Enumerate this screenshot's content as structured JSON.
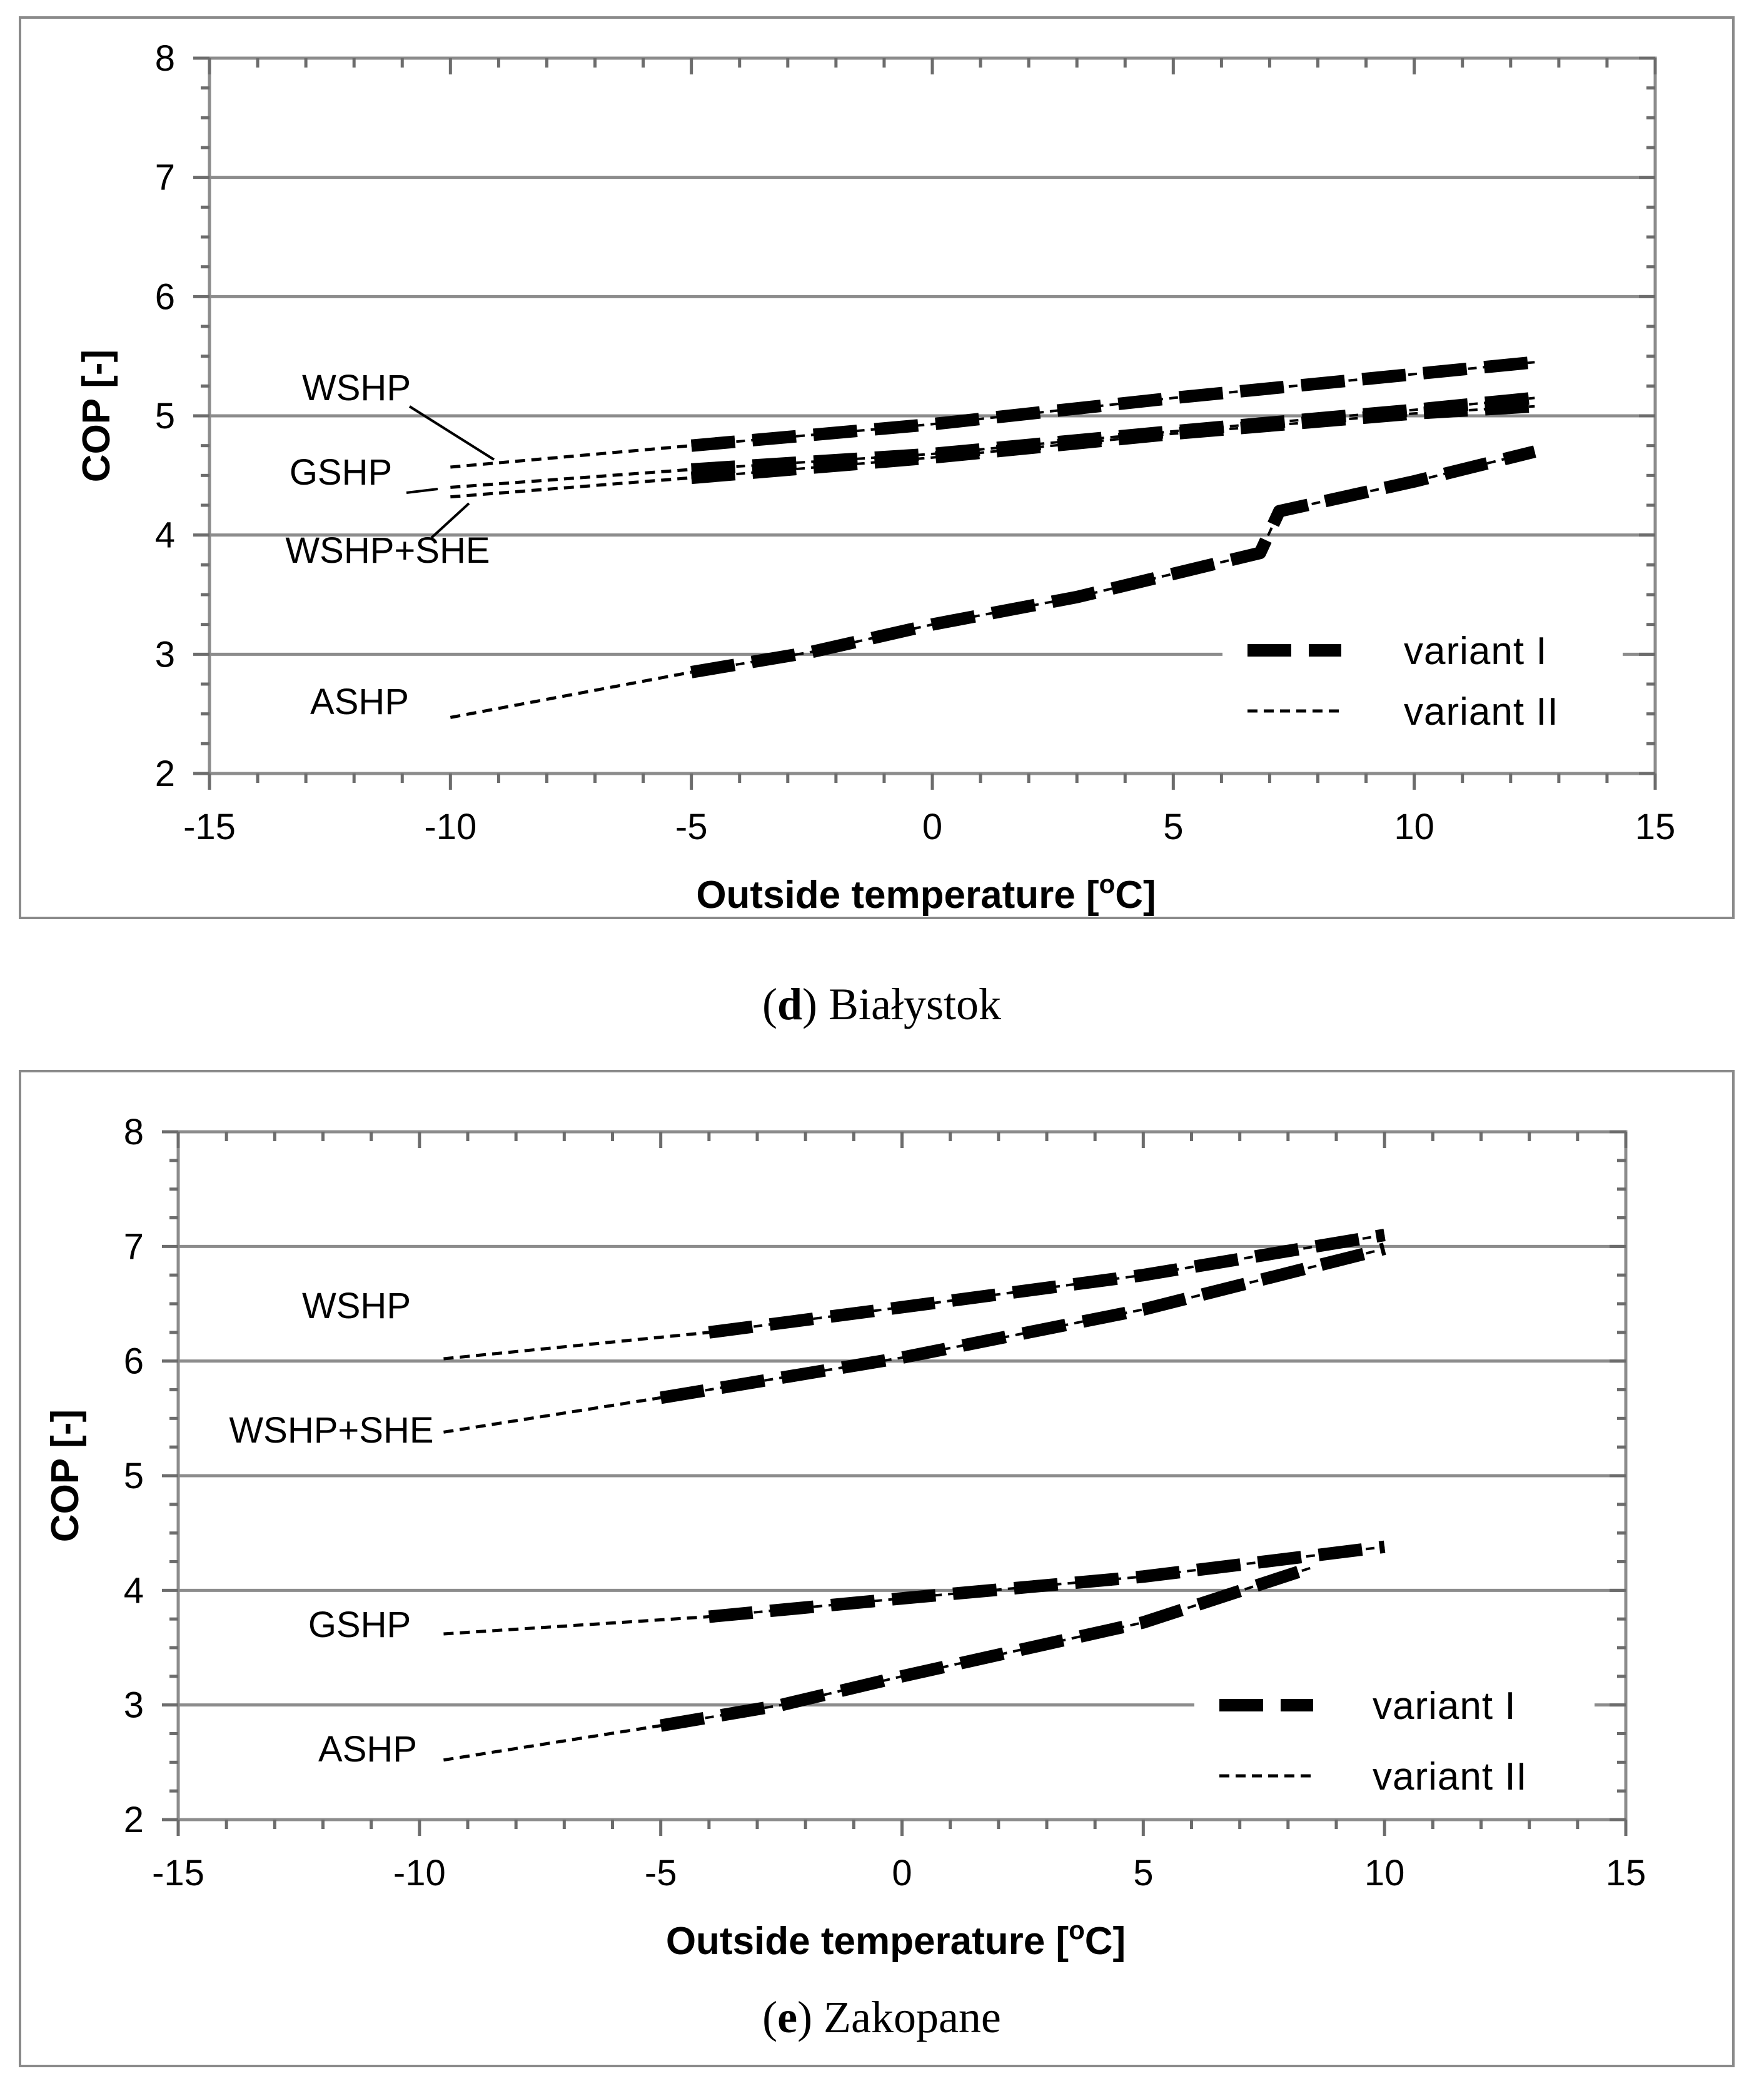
{
  "chart_data": [
    {
      "type": "line",
      "caption_letter": "d",
      "caption_city": "Białystok",
      "caption_open": "(",
      "caption_close": ")",
      "xlabel": "Outside temperature [",
      "xlabel_sup": "o",
      "xlabel_end": "C]",
      "ylabel": "COP [-]",
      "xlim": [
        -15,
        15
      ],
      "ylim": [
        2,
        8
      ],
      "xticks": [
        -15,
        -10,
        -5,
        0,
        5,
        10,
        15
      ],
      "yticks": [
        2,
        3,
        4,
        5,
        6,
        7,
        8
      ],
      "grid": "horizontal",
      "legend": [
        "variant I",
        "variant II"
      ],
      "legend_position": "bottom-right",
      "series": [
        {
          "name": "WSHP",
          "variant_II": [
            [
              -10,
              4.57
            ],
            [
              -5,
              4.75
            ]
          ],
          "variant_I": [
            [
              -5,
              4.75
            ],
            [
              0,
              4.93
            ],
            [
              5,
              5.15
            ],
            [
              10,
              5.35
            ],
            [
              12.5,
              5.45
            ]
          ]
        },
        {
          "name": "GSHP",
          "variant_II": [
            [
              -10,
              4.4
            ],
            [
              -5,
              4.55
            ]
          ],
          "variant_I": [
            [
              -5,
              4.55
            ],
            [
              0,
              4.68
            ],
            [
              5,
              4.87
            ],
            [
              10,
              5.05
            ],
            [
              12.5,
              5.15
            ]
          ]
        },
        {
          "name": "WSHP+SHE",
          "variant_II": [
            [
              -10,
              4.32
            ],
            [
              -5,
              4.48
            ]
          ],
          "variant_I": [
            [
              -5,
              4.48
            ],
            [
              0,
              4.65
            ],
            [
              5,
              4.85
            ],
            [
              10,
              5.02
            ],
            [
              12.5,
              5.08
            ]
          ]
        },
        {
          "name": "ASHP",
          "variant_II": [
            [
              -10,
              2.47
            ],
            [
              -5,
              2.85
            ]
          ],
          "variant_I": [
            [
              -5,
              2.85
            ],
            [
              -2.5,
              3.02
            ],
            [
              0,
              3.25
            ],
            [
              3,
              3.48
            ],
            [
              6.8,
              3.85
            ],
            [
              7.2,
              4.2
            ],
            [
              10,
              4.45
            ],
            [
              12.5,
              4.7
            ]
          ]
        }
      ]
    },
    {
      "type": "line",
      "caption_letter": "e",
      "caption_city": "Zakopane",
      "caption_open": "(",
      "caption_close": ")",
      "xlabel": "Outside temperature [",
      "xlabel_sup": "o",
      "xlabel_end": "C]",
      "ylabel": "COP [-]",
      "xlim": [
        -15,
        15
      ],
      "ylim": [
        2,
        8
      ],
      "xticks": [
        -15,
        -10,
        -5,
        0,
        5,
        10,
        15
      ],
      "yticks": [
        2,
        3,
        4,
        5,
        6,
        7,
        8
      ],
      "grid": "horizontal",
      "legend": [
        "variant I",
        "variant II"
      ],
      "legend_position": "bottom-right",
      "series": [
        {
          "name": "WSHP",
          "variant_II": [
            [
              -9.5,
              6.02
            ],
            [
              -4,
              6.25
            ]
          ],
          "variant_I": [
            [
              -4,
              6.25
            ],
            [
              0,
              6.47
            ],
            [
              5,
              6.75
            ],
            [
              10,
              7.1
            ]
          ]
        },
        {
          "name": "WSHP+SHE",
          "variant_II": [
            [
              -9.5,
              5.38
            ],
            [
              -5,
              5.68
            ]
          ],
          "variant_I": [
            [
              -5,
              5.68
            ],
            [
              0,
              6.03
            ],
            [
              5,
              6.45
            ],
            [
              10,
              6.98
            ]
          ]
        },
        {
          "name": "GSHP",
          "variant_II": [
            [
              -9.5,
              3.62
            ],
            [
              -4,
              3.77
            ]
          ],
          "variant_I": [
            [
              -4,
              3.77
            ],
            [
              0,
              3.93
            ],
            [
              5,
              4.12
            ],
            [
              10,
              4.38
            ]
          ]
        },
        {
          "name": "ASHP",
          "variant_II": [
            [
              -9.5,
              2.52
            ],
            [
              -5,
              2.82
            ]
          ],
          "variant_I": [
            [
              -5,
              2.82
            ],
            [
              -2.5,
              3.0
            ],
            [
              0,
              3.25
            ],
            [
              5,
              3.72
            ],
            [
              8.5,
              4.2
            ]
          ]
        }
      ]
    }
  ]
}
